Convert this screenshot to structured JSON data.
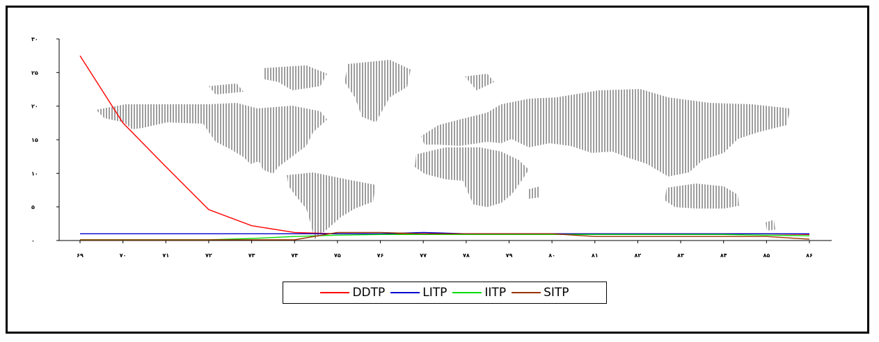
{
  "chart_data": {
    "type": "line",
    "title": "",
    "xlabel": "",
    "ylabel": "",
    "ylim": [
      0,
      30
    ],
    "y_ticks": [
      "۰",
      "۵",
      "۱۰",
      "۱۵",
      "۲۰",
      "۲۵",
      "۳۰"
    ],
    "categories": [
      "۶۹",
      "۷۰",
      "۷۱",
      "۷۲",
      "۷۳",
      "۷۴",
      "۷۵",
      "۷۶",
      "۷۷",
      "۷۸",
      "۷۹",
      "۸۰",
      "۸۱",
      "۸۲",
      "۸۳",
      "۸۴",
      "۸۵",
      "۸۶"
    ],
    "legend_position": "bottom",
    "background": "world-map",
    "series": [
      {
        "name": "DDTP",
        "color": "#ff0000",
        "values": [
          27.5,
          17.5,
          11,
          4.6,
          2.2,
          1.2,
          1.0,
          1.0,
          1.0,
          1.0,
          1.0,
          1.0,
          1.0,
          1.0,
          1.0,
          1.0,
          1.0,
          0.9
        ]
      },
      {
        "name": "LITP",
        "color": "#0000cc",
        "values": [
          1.0,
          1.0,
          1.0,
          1.0,
          1.0,
          1.0,
          1.0,
          1.0,
          1.2,
          1.0,
          1.0,
          1.0,
          1.0,
          1.0,
          1.0,
          1.0,
          1.0,
          1.0
        ]
      },
      {
        "name": "IITP",
        "color": "#00dd00",
        "values": [
          0.1,
          0.1,
          0.1,
          0.1,
          0.3,
          0.6,
          0.8,
          0.9,
          0.9,
          0.9,
          0.9,
          0.9,
          0.9,
          0.9,
          0.9,
          0.9,
          0.8,
          0.7
        ]
      },
      {
        "name": "SITP",
        "color": "#993300",
        "values": [
          0.1,
          0.1,
          0.1,
          0.1,
          0.1,
          0.1,
          1.2,
          1.2,
          1.0,
          1.0,
          1.0,
          1.0,
          0.6,
          0.6,
          0.6,
          0.6,
          0.6,
          0.2
        ]
      }
    ]
  }
}
